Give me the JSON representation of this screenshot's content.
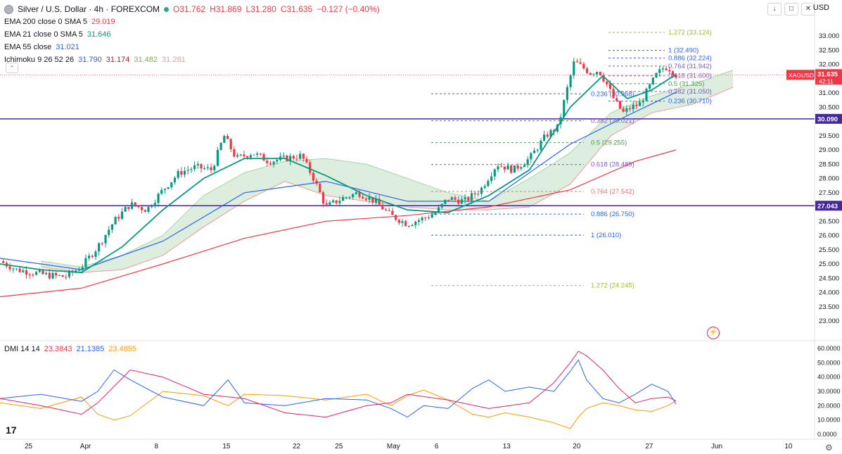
{
  "header": {
    "title": "Silver / U.S. Dollar · 4h · FOREXCOM",
    "open": "O31.762",
    "high": "H31.869",
    "low": "L31.280",
    "close": "C31.635",
    "change": "−0.127 (−0.40%)",
    "currency": "USD"
  },
  "indicators": [
    {
      "label": "EMA 200 close 0 SMA 5",
      "value": "29.019",
      "color": "#f23645"
    },
    {
      "label": "EMA 21 close 0 SMA 5",
      "value": "31.646",
      "color": "#089981"
    },
    {
      "label": "EMA 55 close",
      "value": "31.021",
      "color": "#2962ff"
    },
    {
      "label": "Ichimoku 9 26 52 26",
      "values": [
        "31.790",
        "31.174",
        "31.482",
        "31.281"
      ],
      "colors": [
        "#2962ff",
        "#b71c1c",
        "#43a047",
        "#f23645"
      ]
    }
  ],
  "dmi": {
    "label": "DMI 14 14",
    "values": [
      "23.3843",
      "21.1385",
      "23.4855"
    ],
    "colors": [
      "#f23645",
      "#2962ff",
      "#ff9800"
    ]
  },
  "chart_data": {
    "type": "candlestick",
    "symbol": "XAGUSD",
    "price_axis": {
      "min": 23.0,
      "max": 33.5,
      "ticks": [
        "23.000",
        "23.500",
        "24.000",
        "24.500",
        "25.000",
        "25.500",
        "26.000",
        "26.500",
        "27.000",
        "27.500",
        "28.000",
        "28.500",
        "29.000",
        "29.500",
        "30.000",
        "30.500",
        "31.000",
        "31.500",
        "32.000",
        "32.500",
        "33.000"
      ]
    },
    "x_axis_labels": [
      {
        "label": "25",
        "t": 0.035
      },
      {
        "label": "Apr",
        "t": 0.105
      },
      {
        "label": "8",
        "t": 0.192
      },
      {
        "label": "15",
        "t": 0.278
      },
      {
        "label": "22",
        "t": 0.364
      },
      {
        "label": "25",
        "t": 0.416
      },
      {
        "label": "May",
        "t": 0.483
      },
      {
        "label": "6",
        "t": 0.536
      },
      {
        "label": "13",
        "t": 0.622
      },
      {
        "label": "20",
        "t": 0.708
      },
      {
        "label": "27",
        "t": 0.797
      },
      {
        "label": "Jun",
        "t": 0.88
      },
      {
        "label": "10",
        "t": 0.968
      }
    ],
    "current_price": {
      "label": "XAGUSD",
      "value": "31.635",
      "countdown": "42:11"
    },
    "horizontal_lines": [
      {
        "value": "30.090",
        "price": 30.09
      },
      {
        "value": "27.043",
        "price": 27.043
      }
    ],
    "fib_left": [
      {
        "label": "1.272 (24.245)",
        "price": 24.245,
        "color": "#9bbf31"
      },
      {
        "label": "1 (26.010)",
        "price": 26.01,
        "color": "#2962ff"
      },
      {
        "label": "0.886 (26.750)",
        "price": 26.75,
        "color": "#2962ff"
      },
      {
        "label": "0.764 (27.542)",
        "price": 27.542,
        "color": "#e57373"
      },
      {
        "label": "0.618 (28.489)",
        "price": 28.489,
        "color": "#7e57c2"
      },
      {
        "label": "0.5 (29.255)",
        "price": 29.255,
        "color": "#43a047"
      },
      {
        "label": "0.382 (30.021)",
        "price": 30.021,
        "color": "#7e57c2"
      },
      {
        "label": "0.236 (30.968)",
        "price": 30.968,
        "color": "#2962ff"
      }
    ],
    "fib_right": [
      {
        "label": "1.272 (33.124)",
        "price": 33.124,
        "color": "#9bbf31"
      },
      {
        "label": "1 (32.490)",
        "price": 32.49,
        "color": "#2962ff"
      },
      {
        "label": "0.886 (32.224)",
        "price": 32.224,
        "color": "#2962ff"
      },
      {
        "label": "0.764 (31.942)",
        "price": 31.942,
        "color": "#7e57c2"
      },
      {
        "label": "0.618 (31.600)",
        "price": 31.6,
        "color": "#7e57c2"
      },
      {
        "label": "0.5 (31.325)",
        "price": 31.325,
        "color": "#43a047"
      },
      {
        "label": "0.382 (31.050)",
        "price": 31.05,
        "color": "#7e57c2"
      },
      {
        "label": "0.236 (30.710)",
        "price": 30.71,
        "color": "#2962ff"
      }
    ],
    "close_path": [
      [
        0.0,
        25.1
      ],
      [
        0.02,
        24.8
      ],
      [
        0.04,
        24.7
      ],
      [
        0.06,
        24.6
      ],
      [
        0.08,
        24.55
      ],
      [
        0.1,
        24.9
      ],
      [
        0.12,
        25.6
      ],
      [
        0.14,
        26.5
      ],
      [
        0.16,
        27.1
      ],
      [
        0.18,
        26.9
      ],
      [
        0.2,
        27.6
      ],
      [
        0.22,
        28.2
      ],
      [
        0.24,
        28.4
      ],
      [
        0.26,
        28.3
      ],
      [
        0.275,
        29.5
      ],
      [
        0.29,
        28.7
      ],
      [
        0.31,
        28.9
      ],
      [
        0.33,
        28.6
      ],
      [
        0.35,
        28.7
      ],
      [
        0.37,
        28.8
      ],
      [
        0.385,
        28.0
      ],
      [
        0.4,
        27.0
      ],
      [
        0.42,
        27.3
      ],
      [
        0.44,
        27.5
      ],
      [
        0.46,
        27.2
      ],
      [
        0.48,
        26.7
      ],
      [
        0.5,
        26.4
      ],
      [
        0.52,
        26.6
      ],
      [
        0.535,
        26.8
      ],
      [
        0.55,
        27.3
      ],
      [
        0.57,
        27.2
      ],
      [
        0.59,
        27.6
      ],
      [
        0.61,
        28.5
      ],
      [
        0.63,
        28.3
      ],
      [
        0.65,
        28.7
      ],
      [
        0.67,
        29.5
      ],
      [
        0.685,
        29.8
      ],
      [
        0.695,
        31.0
      ],
      [
        0.705,
        32.1
      ],
      [
        0.715,
        31.9
      ],
      [
        0.725,
        31.7
      ],
      [
        0.735,
        31.8
      ],
      [
        0.745,
        31.3
      ],
      [
        0.755,
        30.7
      ],
      [
        0.765,
        30.3
      ],
      [
        0.775,
        30.5
      ],
      [
        0.785,
        30.6
      ],
      [
        0.795,
        31.1
      ],
      [
        0.805,
        31.6
      ],
      [
        0.815,
        31.9
      ],
      [
        0.82,
        31.9
      ],
      [
        0.83,
        31.635
      ]
    ],
    "ema200": [
      [
        0.0,
        23.85
      ],
      [
        0.1,
        24.15
      ],
      [
        0.2,
        25.0
      ],
      [
        0.3,
        25.9
      ],
      [
        0.4,
        26.5
      ],
      [
        0.5,
        26.7
      ],
      [
        0.6,
        27.0
      ],
      [
        0.7,
        27.6
      ],
      [
        0.78,
        28.6
      ],
      [
        0.83,
        29.0
      ]
    ],
    "ema21": [
      [
        0.0,
        25.0
      ],
      [
        0.05,
        24.8
      ],
      [
        0.1,
        24.7
      ],
      [
        0.15,
        25.6
      ],
      [
        0.2,
        26.9
      ],
      [
        0.25,
        28.0
      ],
      [
        0.3,
        28.7
      ],
      [
        0.35,
        28.7
      ],
      [
        0.4,
        28.1
      ],
      [
        0.45,
        27.4
      ],
      [
        0.5,
        26.9
      ],
      [
        0.55,
        26.8
      ],
      [
        0.6,
        27.4
      ],
      [
        0.65,
        28.3
      ],
      [
        0.7,
        30.5
      ],
      [
        0.74,
        31.6
      ],
      [
        0.77,
        30.8
      ],
      [
        0.8,
        31.1
      ],
      [
        0.83,
        31.646
      ]
    ],
    "ema55": [
      [
        0.0,
        25.2
      ],
      [
        0.1,
        24.8
      ],
      [
        0.2,
        25.8
      ],
      [
        0.3,
        27.5
      ],
      [
        0.4,
        27.9
      ],
      [
        0.5,
        27.2
      ],
      [
        0.6,
        27.2
      ],
      [
        0.7,
        29.2
      ],
      [
        0.77,
        30.2
      ],
      [
        0.83,
        31.021
      ]
    ],
    "cloud_upper": [
      [
        0.05,
        25.1
      ],
      [
        0.1,
        24.9
      ],
      [
        0.15,
        25.3
      ],
      [
        0.2,
        26.0
      ],
      [
        0.25,
        27.4
      ],
      [
        0.3,
        28.2
      ],
      [
        0.35,
        28.6
      ],
      [
        0.4,
        28.7
      ],
      [
        0.45,
        28.5
      ],
      [
        0.5,
        28.0
      ],
      [
        0.55,
        27.5
      ],
      [
        0.6,
        27.2
      ],
      [
        0.65,
        28.0
      ],
      [
        0.7,
        28.9
      ],
      [
        0.75,
        30.3
      ],
      [
        0.8,
        30.9
      ],
      [
        0.85,
        31.3
      ],
      [
        0.9,
        31.8
      ]
    ],
    "cloud_lower": [
      [
        0.05,
        24.9
      ],
      [
        0.1,
        24.7
      ],
      [
        0.15,
        24.8
      ],
      [
        0.2,
        25.3
      ],
      [
        0.25,
        26.3
      ],
      [
        0.3,
        27.2
      ],
      [
        0.35,
        27.9
      ],
      [
        0.4,
        27.4
      ],
      [
        0.45,
        27.2
      ],
      [
        0.5,
        27.0
      ],
      [
        0.55,
        26.9
      ],
      [
        0.6,
        26.9
      ],
      [
        0.65,
        27.0
      ],
      [
        0.7,
        27.8
      ],
      [
        0.75,
        29.5
      ],
      [
        0.8,
        30.3
      ],
      [
        0.85,
        30.6
      ],
      [
        0.9,
        31.2
      ]
    ],
    "dmi_axis": {
      "min": 0,
      "max": 60,
      "ticks": [
        "0.0000",
        "10.0000",
        "20.0000",
        "30.0000",
        "40.0000",
        "50.0000",
        "60.0000"
      ]
    },
    "di_plus": [
      [
        0.0,
        25
      ],
      [
        0.05,
        28
      ],
      [
        0.1,
        23
      ],
      [
        0.12,
        30
      ],
      [
        0.14,
        45
      ],
      [
        0.16,
        38
      ],
      [
        0.2,
        26
      ],
      [
        0.25,
        20
      ],
      [
        0.28,
        38
      ],
      [
        0.3,
        22
      ],
      [
        0.35,
        20
      ],
      [
        0.4,
        25
      ],
      [
        0.45,
        24
      ],
      [
        0.48,
        18
      ],
      [
        0.5,
        12
      ],
      [
        0.52,
        20
      ],
      [
        0.55,
        18
      ],
      [
        0.58,
        32
      ],
      [
        0.6,
        38
      ],
      [
        0.62,
        30
      ],
      [
        0.65,
        33
      ],
      [
        0.68,
        30
      ],
      [
        0.7,
        44
      ],
      [
        0.71,
        52
      ],
      [
        0.72,
        38
      ],
      [
        0.74,
        25
      ],
      [
        0.76,
        22
      ],
      [
        0.78,
        28
      ],
      [
        0.8,
        35
      ],
      [
        0.82,
        30
      ],
      [
        0.83,
        21.1
      ]
    ],
    "di_minus": [
      [
        0.0,
        22
      ],
      [
        0.05,
        18
      ],
      [
        0.1,
        26
      ],
      [
        0.12,
        14
      ],
      [
        0.14,
        10
      ],
      [
        0.16,
        13
      ],
      [
        0.2,
        30
      ],
      [
        0.25,
        27
      ],
      [
        0.28,
        20
      ],
      [
        0.3,
        28
      ],
      [
        0.35,
        27
      ],
      [
        0.4,
        24
      ],
      [
        0.45,
        28
      ],
      [
        0.48,
        20
      ],
      [
        0.5,
        27
      ],
      [
        0.52,
        31
      ],
      [
        0.55,
        24
      ],
      [
        0.58,
        14
      ],
      [
        0.6,
        12
      ],
      [
        0.62,
        15
      ],
      [
        0.65,
        12
      ],
      [
        0.68,
        8
      ],
      [
        0.7,
        4
      ],
      [
        0.71,
        12
      ],
      [
        0.72,
        18
      ],
      [
        0.74,
        22
      ],
      [
        0.76,
        20
      ],
      [
        0.78,
        17
      ],
      [
        0.8,
        16
      ],
      [
        0.82,
        20
      ],
      [
        0.83,
        23.5
      ]
    ],
    "adx": [
      [
        0.0,
        25
      ],
      [
        0.05,
        20
      ],
      [
        0.1,
        14
      ],
      [
        0.12,
        22
      ],
      [
        0.16,
        45
      ],
      [
        0.2,
        40
      ],
      [
        0.25,
        28
      ],
      [
        0.3,
        25
      ],
      [
        0.35,
        15
      ],
      [
        0.4,
        12
      ],
      [
        0.45,
        20
      ],
      [
        0.48,
        22
      ],
      [
        0.5,
        28
      ],
      [
        0.55,
        24
      ],
      [
        0.6,
        18
      ],
      [
        0.65,
        22
      ],
      [
        0.68,
        36
      ],
      [
        0.7,
        50
      ],
      [
        0.71,
        58
      ],
      [
        0.72,
        55
      ],
      [
        0.74,
        45
      ],
      [
        0.76,
        32
      ],
      [
        0.78,
        22
      ],
      [
        0.8,
        25
      ],
      [
        0.82,
        26
      ],
      [
        0.83,
        23.4
      ]
    ]
  }
}
